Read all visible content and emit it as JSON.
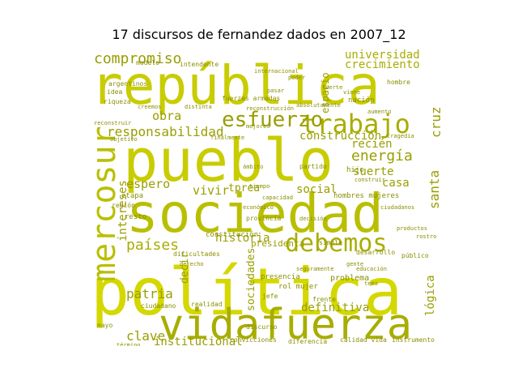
{
  "title": "17 discursos de fernandez dados en 2007_12",
  "colors": [
    "#c8cc00",
    "#b9bf00",
    "#a8ad00",
    "#999e00",
    "#8a8f00",
    "#d4d800"
  ],
  "words": [
    {
      "text": "república",
      "rot": 0,
      "c": 0
    },
    {
      "text": "pueblo",
      "rot": 0,
      "c": 0
    },
    {
      "text": "sociedad",
      "rot": 0,
      "c": 1
    },
    {
      "text": "política",
      "rot": 0,
      "c": 5
    },
    {
      "text": "vidafuerza",
      "rot": 0,
      "c": 2
    },
    {
      "text": "mercosur",
      "rot": -90,
      "c": 1
    },
    {
      "text": "trabajo",
      "rot": 0,
      "c": 2
    },
    {
      "text": "esfuerzo",
      "rot": 0,
      "c": 3
    },
    {
      "text": "debemos",
      "rot": 0,
      "c": 2
    },
    {
      "text": "compromiso",
      "rot": 0,
      "c": 3
    },
    {
      "text": "energía",
      "rot": 0,
      "c": 3
    },
    {
      "text": "responsabilidad",
      "rot": 0,
      "c": 3
    },
    {
      "text": "países",
      "rot": 0,
      "c": 2
    },
    {
      "text": "universidad",
      "rot": 0,
      "c": 2
    },
    {
      "text": "crecimiento",
      "rot": 0,
      "c": 2
    },
    {
      "text": "patria",
      "rot": 0,
      "c": 3
    },
    {
      "text": "clave",
      "rot": 0,
      "c": 3
    },
    {
      "text": "definitiva",
      "rot": 0,
      "c": 3
    },
    {
      "text": "institucional",
      "rot": 0,
      "c": 3
    },
    {
      "text": "historia",
      "rot": 0,
      "c": 3
    },
    {
      "text": "suerte",
      "rot": 0,
      "c": 3
    },
    {
      "text": "casa",
      "rot": 0,
      "c": 3
    },
    {
      "text": "social",
      "rot": 0,
      "c": 3
    },
    {
      "text": "vivir",
      "rot": 0,
      "c": 3
    },
    {
      "text": "espero",
      "rot": 0,
      "c": 3
    },
    {
      "text": "obra",
      "rot": 0,
      "c": 3
    },
    {
      "text": "recién",
      "rot": 0,
      "c": 3
    },
    {
      "text": "construcción",
      "rot": 0,
      "c": 3
    },
    {
      "text": "santa",
      "rot": -90,
      "c": 3
    },
    {
      "text": "cruz",
      "rot": -90,
      "c": 3
    },
    {
      "text": "intereses",
      "rot": -90,
      "c": 3
    },
    {
      "text": "lógica",
      "rot": -90,
      "c": 3
    },
    {
      "text": "sociedades",
      "rot": -90,
      "c": 3
    },
    {
      "text": "decir",
      "rot": -90,
      "c": 3
    },
    {
      "text": "espacio",
      "rot": -90,
      "c": 3
    },
    {
      "text": "presidenta",
      "rot": 0,
      "c": 3
    },
    {
      "text": "tprea",
      "rot": 0,
      "c": 3
    },
    {
      "text": "hijo",
      "rot": 0,
      "c": 4
    },
    {
      "text": "hombres mujeres",
      "rot": 0,
      "c": 4
    },
    {
      "text": "argentinos",
      "rot": 0,
      "c": 4
    },
    {
      "text": "modelo",
      "rot": 0,
      "c": 4
    },
    {
      "text": "intendente",
      "rot": 0,
      "c": 4
    },
    {
      "text": "fuerzas armadas",
      "rot": 0,
      "c": 4
    },
    {
      "text": "reconstrucción",
      "rot": 0,
      "c": 4
    },
    {
      "text": "absolutamente",
      "rot": 0,
      "c": 4
    },
    {
      "text": "distinta",
      "rot": 0,
      "c": 4
    },
    {
      "text": "creemos",
      "rot": 0,
      "c": 4
    },
    {
      "text": "riqueza",
      "rot": 0,
      "c": 4
    },
    {
      "text": "idea",
      "rot": 0,
      "c": 4
    },
    {
      "text": "reconstruir",
      "rot": 0,
      "c": 4
    },
    {
      "text": "objetivo",
      "rot": 0,
      "c": 4
    },
    {
      "text": "mejores",
      "rot": 0,
      "c": 4
    },
    {
      "text": "etapa",
      "rot": 0,
      "c": 4
    },
    {
      "text": "región",
      "rot": 0,
      "c": 4
    },
    {
      "text": "resto",
      "rot": 0,
      "c": 4
    },
    {
      "text": "constitución",
      "rot": 0,
      "c": 4
    },
    {
      "text": "dificultades",
      "rot": 0,
      "c": 4
    },
    {
      "text": "derecho",
      "rot": 0,
      "c": 4
    },
    {
      "text": "simple",
      "rot": 0,
      "c": 4
    },
    {
      "text": "desarrollo",
      "rot": 0,
      "c": 4
    },
    {
      "text": "público",
      "rot": 0,
      "c": 4
    },
    {
      "text": "problema",
      "rot": 0,
      "c": 4
    },
    {
      "text": "rol mujer",
      "rot": 0,
      "c": 4
    },
    {
      "text": "ciudadano",
      "rot": 0,
      "c": 4
    },
    {
      "text": "realidad",
      "rot": 0,
      "c": 4
    },
    {
      "text": "presencia",
      "rot": 0,
      "c": 4
    },
    {
      "text": "jefe",
      "rot": 0,
      "c": 4
    },
    {
      "text": "discurso",
      "rot": 0,
      "c": 4
    },
    {
      "text": "convicciones",
      "rot": 0,
      "c": 4
    },
    {
      "text": "diferencia",
      "rot": 0,
      "c": 4
    },
    {
      "text": "calidad vida",
      "rot": 0,
      "c": 4
    },
    {
      "text": "instrumento",
      "rot": 0,
      "c": 4
    },
    {
      "text": "mayo",
      "rot": 0,
      "c": 4
    },
    {
      "text": "término",
      "rot": 0,
      "c": 4
    },
    {
      "text": "nación",
      "rot": 0,
      "c": 4
    },
    {
      "text": "fuerte",
      "rot": 0,
      "c": 4
    },
    {
      "text": "viene",
      "rot": 0,
      "c": 4
    },
    {
      "text": "hombre",
      "rot": 0,
      "c": 4
    },
    {
      "text": "tragedia",
      "rot": 0,
      "c": 4
    },
    {
      "text": "ciudadanos",
      "rot": 0,
      "c": 4
    },
    {
      "text": "decisión",
      "rot": 0,
      "c": 4
    },
    {
      "text": "gente",
      "rot": 0,
      "c": 4
    },
    {
      "text": "educación",
      "rot": 0,
      "c": 4
    },
    {
      "text": "tema",
      "rot": 0,
      "c": 4
    },
    {
      "text": "provincia",
      "rot": 0,
      "c": 4
    },
    {
      "text": "económico",
      "rot": 0,
      "c": 4
    },
    {
      "text": "capacidad",
      "rot": 0,
      "c": 4
    },
    {
      "text": "seguramente",
      "rot": 0,
      "c": 4
    },
    {
      "text": "partido",
      "rot": 0,
      "c": 4
    },
    {
      "text": "frente",
      "rot": 0,
      "c": 4
    },
    {
      "text": "tiempo",
      "rot": 0,
      "c": 4
    },
    {
      "text": "pasar",
      "rot": 0,
      "c": 4
    },
    {
      "text": "internacional",
      "rot": 0,
      "c": 4
    },
    {
      "text": "finalmente",
      "rot": 0,
      "c": 4
    },
    {
      "text": "construir",
      "rot": 0,
      "c": 4
    },
    {
      "text": "productos",
      "rot": 0,
      "c": 4
    },
    {
      "text": "rostro",
      "rot": 0,
      "c": 4
    },
    {
      "text": "aumento",
      "rot": 0,
      "c": 4
    },
    {
      "text": "poder",
      "rot": 0,
      "c": 4
    },
    {
      "text": "ámbito",
      "rot": 0,
      "c": 4
    }
  ]
}
